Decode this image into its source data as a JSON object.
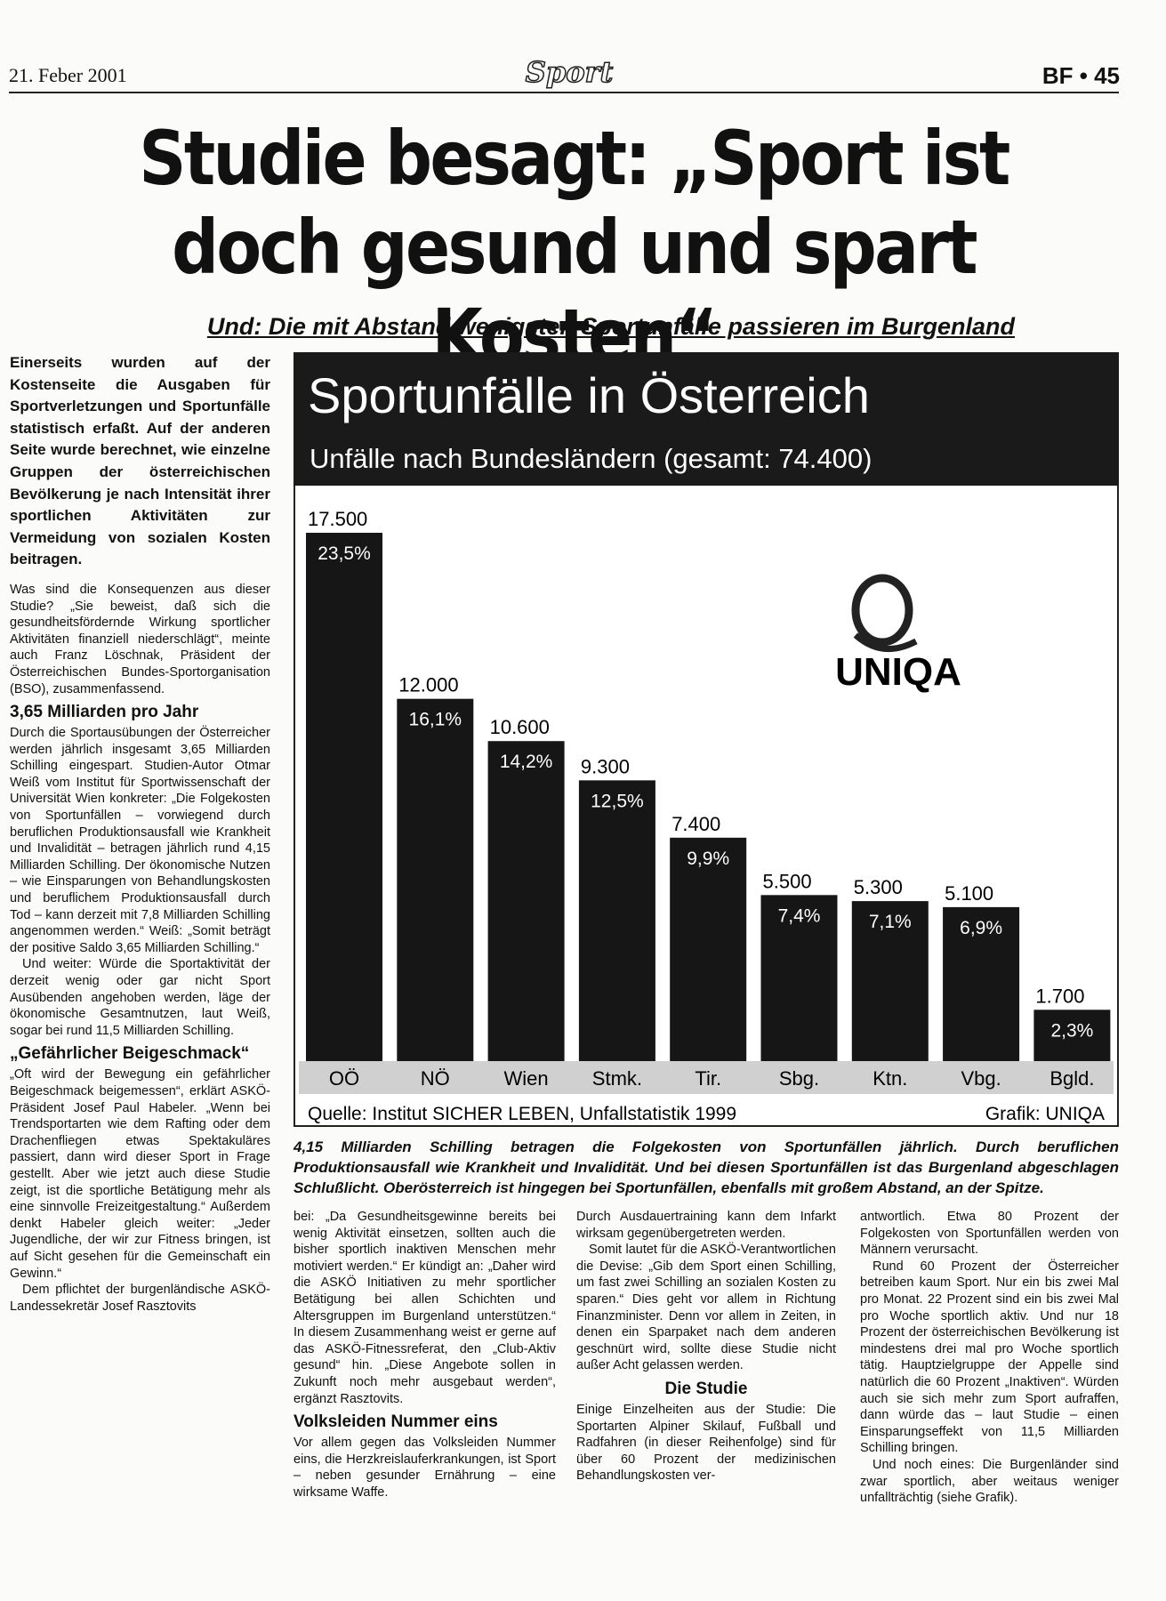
{
  "header": {
    "date": "21. Feber 2001",
    "section": "Sport",
    "page": "BF • 45"
  },
  "headline": "Studie besagt: „Sport ist doch gesund und spart Kosten“",
  "subheadline": "Und: Die mit Abstand wenigsten Sportunfälle passieren im Burgenland",
  "chart_data": {
    "type": "bar",
    "title": "Sportunfälle in Österreich",
    "subtitle": "Unfälle nach Bundesländern (gesamt: 74.400)",
    "categories": [
      "OÖ",
      "NÖ",
      "Wien",
      "Stmk.",
      "Tir.",
      "Sbg.",
      "Ktn.",
      "Vbg.",
      "Bgld."
    ],
    "values": [
      17500,
      12000,
      10600,
      9300,
      7400,
      5500,
      5300,
      5100,
      1700
    ],
    "value_labels": [
      "17.500",
      "12.000",
      "10.600",
      "9.300",
      "7.400",
      "5.500",
      "5.300",
      "5.100",
      "1.700"
    ],
    "percentages": [
      23.5,
      16.1,
      14.2,
      12.5,
      9.9,
      7.4,
      7.1,
      6.9,
      2.3
    ],
    "percentage_labels": [
      "23,5%",
      "16,1%",
      "14,2%",
      "12,5%",
      "9,9%",
      "7,4%",
      "7,1%",
      "6,9%",
      "2,3%"
    ],
    "color": "#161616",
    "logo": "UNIQA",
    "source": "Quelle: Institut SICHER LEBEN, Unfallstatistik 1999",
    "credit": "Grafik: UNIQA"
  },
  "caption": "4,15 Milliarden Schilling betragen die Folgekosten von Sportunfällen jährlich. Durch beruflichen Produktionsausfall wie Krankheit und Invalidität. Und bei diesen Sportunfällen ist das Burgenland abgeschlagen Schlußlicht. Oberösterreich ist hingegen bei Sportunfällen, ebenfalls mit großem Abstand, an der Spitze.",
  "article": {
    "columns": [
      [
        {
          "lead": "Einerseits wurden auf der Kostenseite die Ausgaben für Sportverletzungen und Sportunfälle statistisch erfaßt. Auf der anderen Seite wurde berechnet, wie einzelne Gruppen der österreichischen Bevölkerung je nach Intensität ihrer sportlichen Aktivitäten zur Vermeidung von sozialen Kosten beitragen."
        },
        {
          "p": "Was sind die Konsequenzen aus dieser Studie? „Sie beweist, daß sich die gesundheitsfördernde Wirkung sportlicher Aktivitäten finanziell niederschlägt“, meinte auch Franz Löschnak, Präsident der Österreichischen Bundes-Sportorganisation (BSO), zusammenfassend."
        },
        {
          "h": "3,65 Milliarden pro Jahr"
        },
        {
          "p": "Durch die Sportausübungen der Österreicher werden jährlich insgesamt 3,65 Milliarden Schilling eingespart. Studien-Autor Otmar Weiß vom Institut für Sportwissenschaft der Universität Wien konkreter: „Die Folgekosten von Sportunfällen – vorwiegend durch beruflichen Produktionsausfall wie Krankheit und Invalidität – betragen jährlich rund 4,15 Milliarden Schilling. Der ökonomische Nutzen – wie Einsparungen von Behandlungskosten und beruflichem Produktionsausfall durch Tod – kann derzeit mit 7,8 Milliarden Schilling angenommen werden.“ Weiß: „Somit beträgt der positive Saldo 3,65 Milliarden Schilling.“"
        },
        {
          "p": "Und weiter: Würde die Sportaktivität der derzeit wenig oder gar nicht Sport Ausübenden angehoben werden, läge der ökonomische Gesamtnutzen, laut Weiß, sogar bei rund 11,5 Milliarden Schilling."
        },
        {
          "h": "„Gefährlicher Beigeschmack“"
        },
        {
          "p": "„Oft wird der Bewegung ein gefährlicher Beigeschmack beigemessen“, erklärt ASKÖ-Präsident Josef Paul Habeler. „Wenn bei Trendsportarten wie dem Rafting oder dem Drachenfliegen etwas Spektakuläres passiert, dann wird dieser Sport in Frage gestellt. Aber wie jetzt auch diese Studie zeigt, ist die sportliche Betätigung mehr als eine sinnvolle Freizeitgestaltung.“ Außerdem denkt Habeler gleich weiter: „Jeder Jugendliche, der wir zur Fitness bringen, ist auf Sicht gesehen für die Gemeinschaft ein Gewinn.“"
        },
        {
          "p": "Dem pflichtet der burgenländische ASKÖ-Landessekretär Josef Rasztovits"
        }
      ],
      [
        {
          "p": "bei: „Da Gesundheitsgewinne bereits bei wenig Aktivität einsetzen, sollten auch die bisher sportlich inaktiven Menschen mehr motiviert werden.“ Er kündigt an: „Daher wird die ASKÖ Initiativen zu mehr sportlicher Betätigung bei allen Schichten und Altersgruppen im Burgenland unterstützen.“ In diesem Zusammenhang weist er gerne auf das ASKÖ-Fitnessreferat, den „Club-Aktiv gesund“ hin. „Diese Angebote sollen in Zukunft noch mehr ausgebaut werden“, ergänzt Rasztovits."
        },
        {
          "h": "Volksleiden Nummer eins"
        },
        {
          "p": "Vor allem gegen das Volksleiden Nummer eins, die Herzkreislauferkrankungen, ist Sport – neben gesunder Ernährung – eine wirksame Waffe."
        }
      ],
      [
        {
          "p": "Durch Ausdauertraining kann dem Infarkt wirksam gegenübergetreten werden."
        },
        {
          "p": "Somit lautet für die ASKÖ-Verantwortlichen die Devise: „Gib dem Sport einen Schilling, um fast zwei Schilling an sozialen Kosten zu sparen.“ Dies geht vor allem in Richtung Finanzminister. Denn vor allem in Zeiten, in denen ein Sparpaket nach dem anderen geschnürt wird, sollte diese Studie nicht außer Acht gelassen werden."
        },
        {
          "h": "Die Studie"
        },
        {
          "p": "Einige Einzelheiten aus der Studie: Die Sportarten Alpiner Skilauf, Fußball und Radfahren (in dieser Reihenfolge) sind für über 60 Prozent der medizinischen Behandlungskosten ver-"
        }
      ],
      [
        {
          "p": "antwortlich. Etwa 80 Prozent der Folgekosten von Sportunfällen werden von Männern verursacht."
        },
        {
          "p": "Rund 60 Prozent der Österreicher betreiben kaum Sport. Nur ein bis zwei Mal pro Monat. 22 Prozent sind ein bis zwei Mal pro Woche sportlich aktiv. Und nur 18 Prozent der österreichischen Bevölkerung ist mindestens drei mal pro Woche sportlich tätig. Hauptzielgruppe der Appelle sind natürlich die 60 Prozent „Inaktiven“. Würden auch sie sich mehr zum Sport aufraffen, dann würde das – laut Studie – einen Einsparungseffekt von 11,5 Milliarden Schilling bringen."
        },
        {
          "p": "Und noch eines: Die Burgenländer sind zwar sportlich, aber weitaus weniger unfallträchtig (siehe Grafik)."
        }
      ]
    ]
  }
}
